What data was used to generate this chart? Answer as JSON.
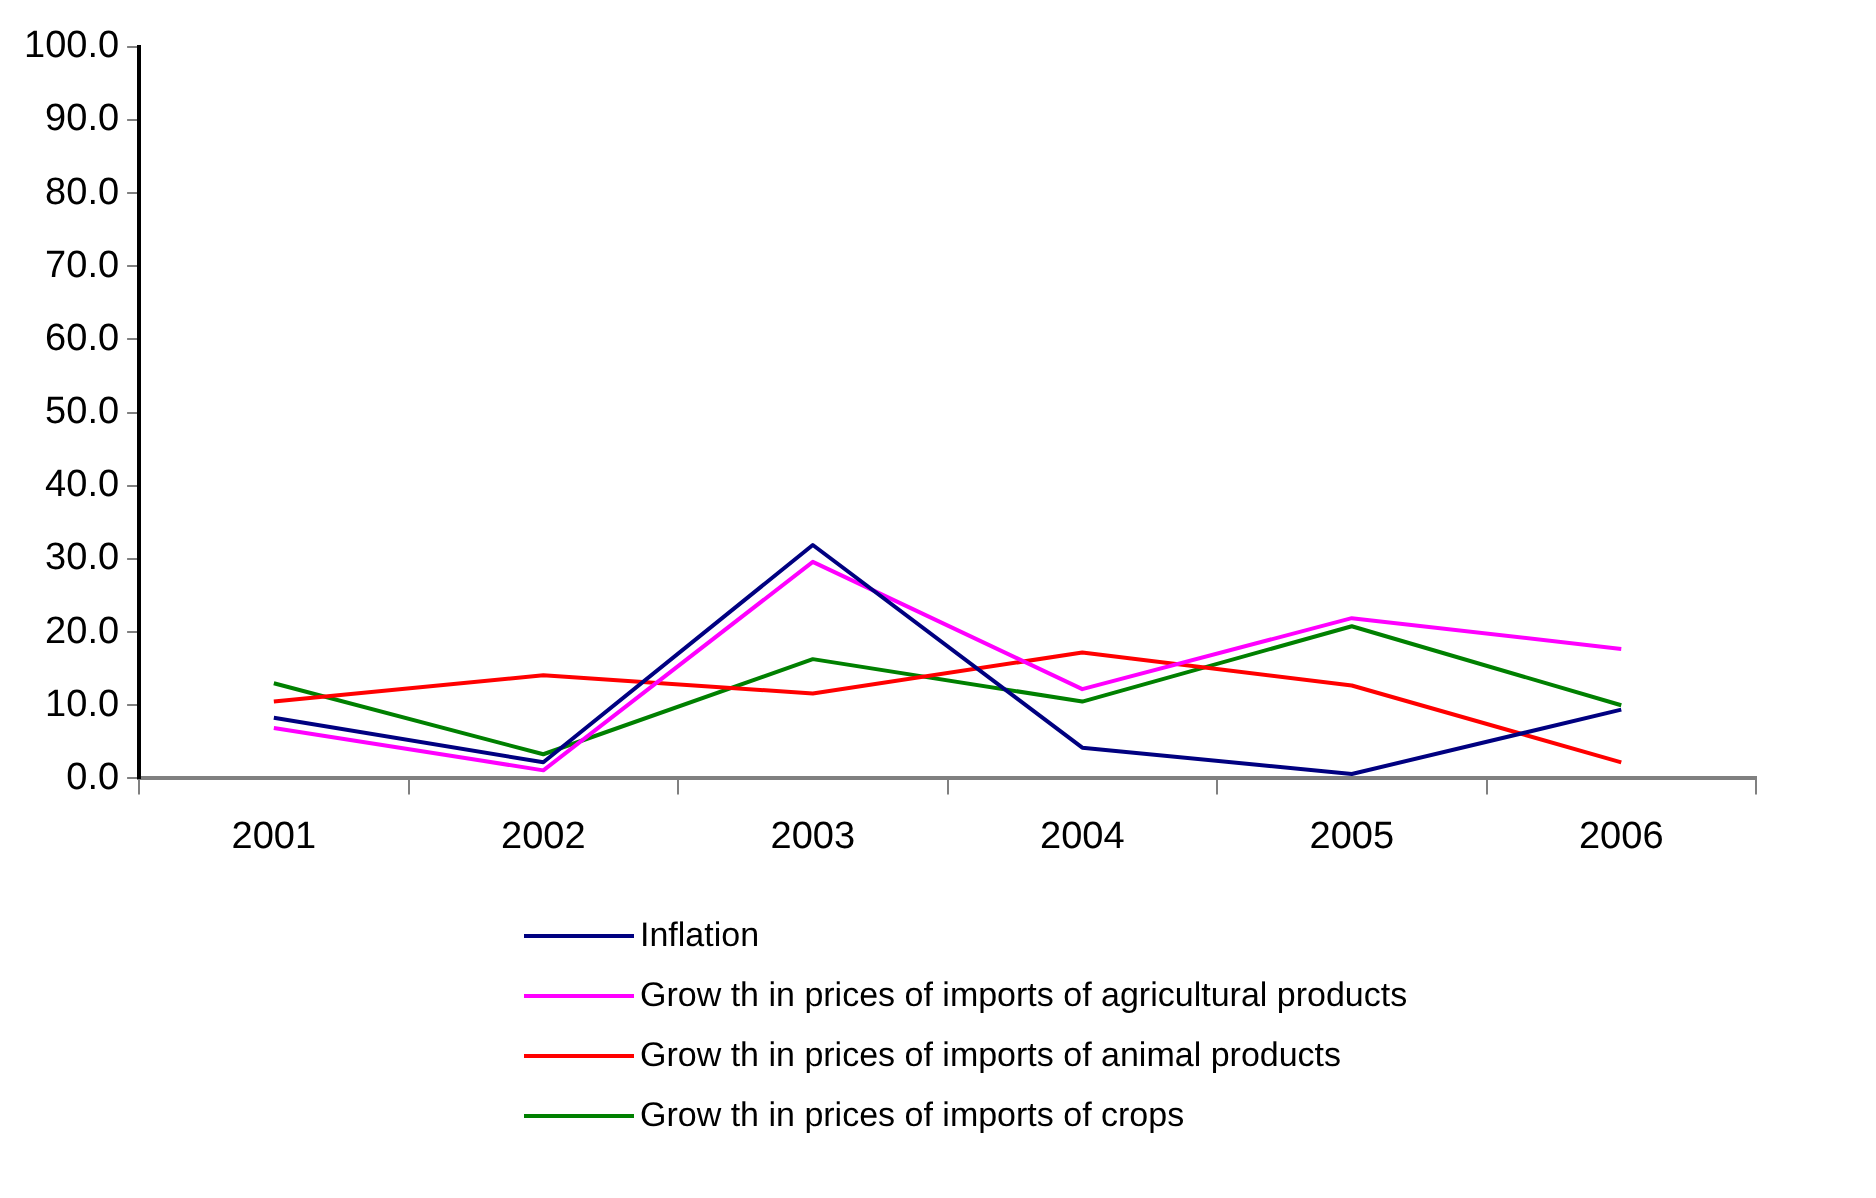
{
  "chart_data": {
    "type": "line",
    "categories": [
      "2001",
      "2002",
      "2003",
      "2004",
      "2005",
      "2006"
    ],
    "ylim": [
      0,
      100
    ],
    "yticks": [
      {
        "value": 0,
        "label": "0.0"
      },
      {
        "value": 10,
        "label": "10.0"
      },
      {
        "value": 20,
        "label": "20.0"
      },
      {
        "value": 30,
        "label": "30.0"
      },
      {
        "value": 40,
        "label": "40.0"
      },
      {
        "value": 50,
        "label": "50.0"
      },
      {
        "value": 60,
        "label": "60.0"
      },
      {
        "value": 70,
        "label": "70.0"
      },
      {
        "value": 80,
        "label": "80.0"
      },
      {
        "value": 90,
        "label": "90.0"
      },
      {
        "value": 100,
        "label": "100.0"
      }
    ],
    "grid": false,
    "legend": "bottom",
    "marker": "none",
    "line_style": "solid",
    "series": [
      {
        "name": "Inflation",
        "color": "#000080",
        "values": [
          8.3,
          2.2,
          31.9,
          4.2,
          0.6,
          9.4
        ]
      },
      {
        "name": "Grow th in prices of imports of agricultural products",
        "color": "#ff00ff",
        "values": [
          6.9,
          1.1,
          29.6,
          12.2,
          21.9,
          17.7
        ]
      },
      {
        "name": "Grow th in prices of imports of animal products",
        "color": "#ff0000",
        "values": [
          10.5,
          14.1,
          11.6,
          17.2,
          12.7,
          2.2
        ]
      },
      {
        "name": "Grow th in prices of imports of crops",
        "color": "#008000",
        "values": [
          13.0,
          3.3,
          16.3,
          10.5,
          20.8,
          10.0
        ]
      }
    ]
  }
}
